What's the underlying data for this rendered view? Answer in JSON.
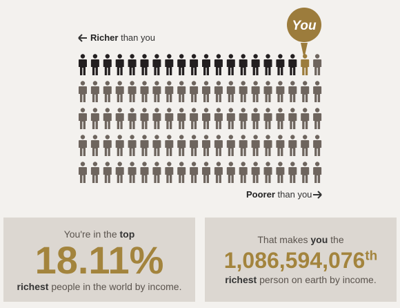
{
  "you_badge": "You",
  "richer_label": {
    "bold": "Richer",
    "rest": "than you"
  },
  "poorer_label": {
    "bold": "Poorer",
    "rest": "than you"
  },
  "figures": {
    "richer": 18,
    "you": 1,
    "poorer": 81
  },
  "left_box": {
    "line1": {
      "text": "You're in the",
      "bold": "top"
    },
    "value": "18.11%",
    "line3": {
      "bold": "richest",
      "text": "people in the world by income."
    }
  },
  "right_box": {
    "line1": {
      "text": "That makes",
      "bold": "you",
      "after": "the"
    },
    "value": "1,086,594,076",
    "suffix": "th",
    "line3": {
      "bold": "richest",
      "text": "person on earth by income."
    }
  }
}
